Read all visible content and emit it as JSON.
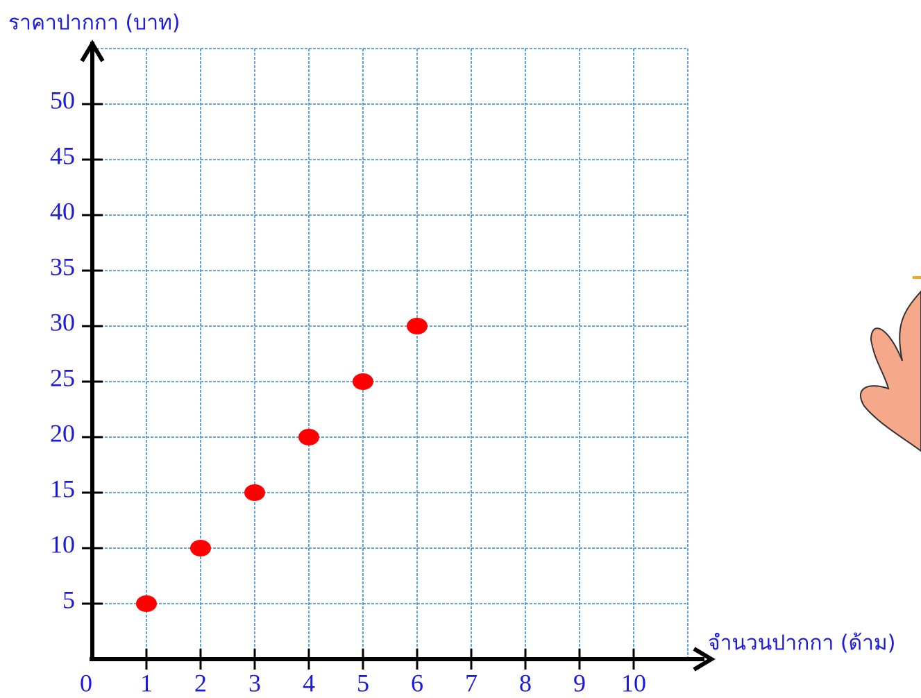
{
  "chart_data": {
    "type": "scatter",
    "x_label": "จำนวนปากกา (ด้าม)",
    "y_label": "ราคาปากกา (บาท)",
    "x": [
      1,
      2,
      3,
      4,
      5,
      6
    ],
    "values": [
      5,
      10,
      15,
      20,
      25,
      30
    ],
    "color": "#ff0000",
    "xlim": [
      0,
      11
    ],
    "ylim": [
      0,
      55
    ],
    "xticks": [
      0,
      1,
      2,
      3,
      4,
      5,
      6,
      7,
      8,
      9,
      10
    ],
    "yticks": [
      5,
      10,
      15,
      20,
      25,
      30,
      35,
      40,
      45,
      50
    ],
    "grid": true
  }
}
